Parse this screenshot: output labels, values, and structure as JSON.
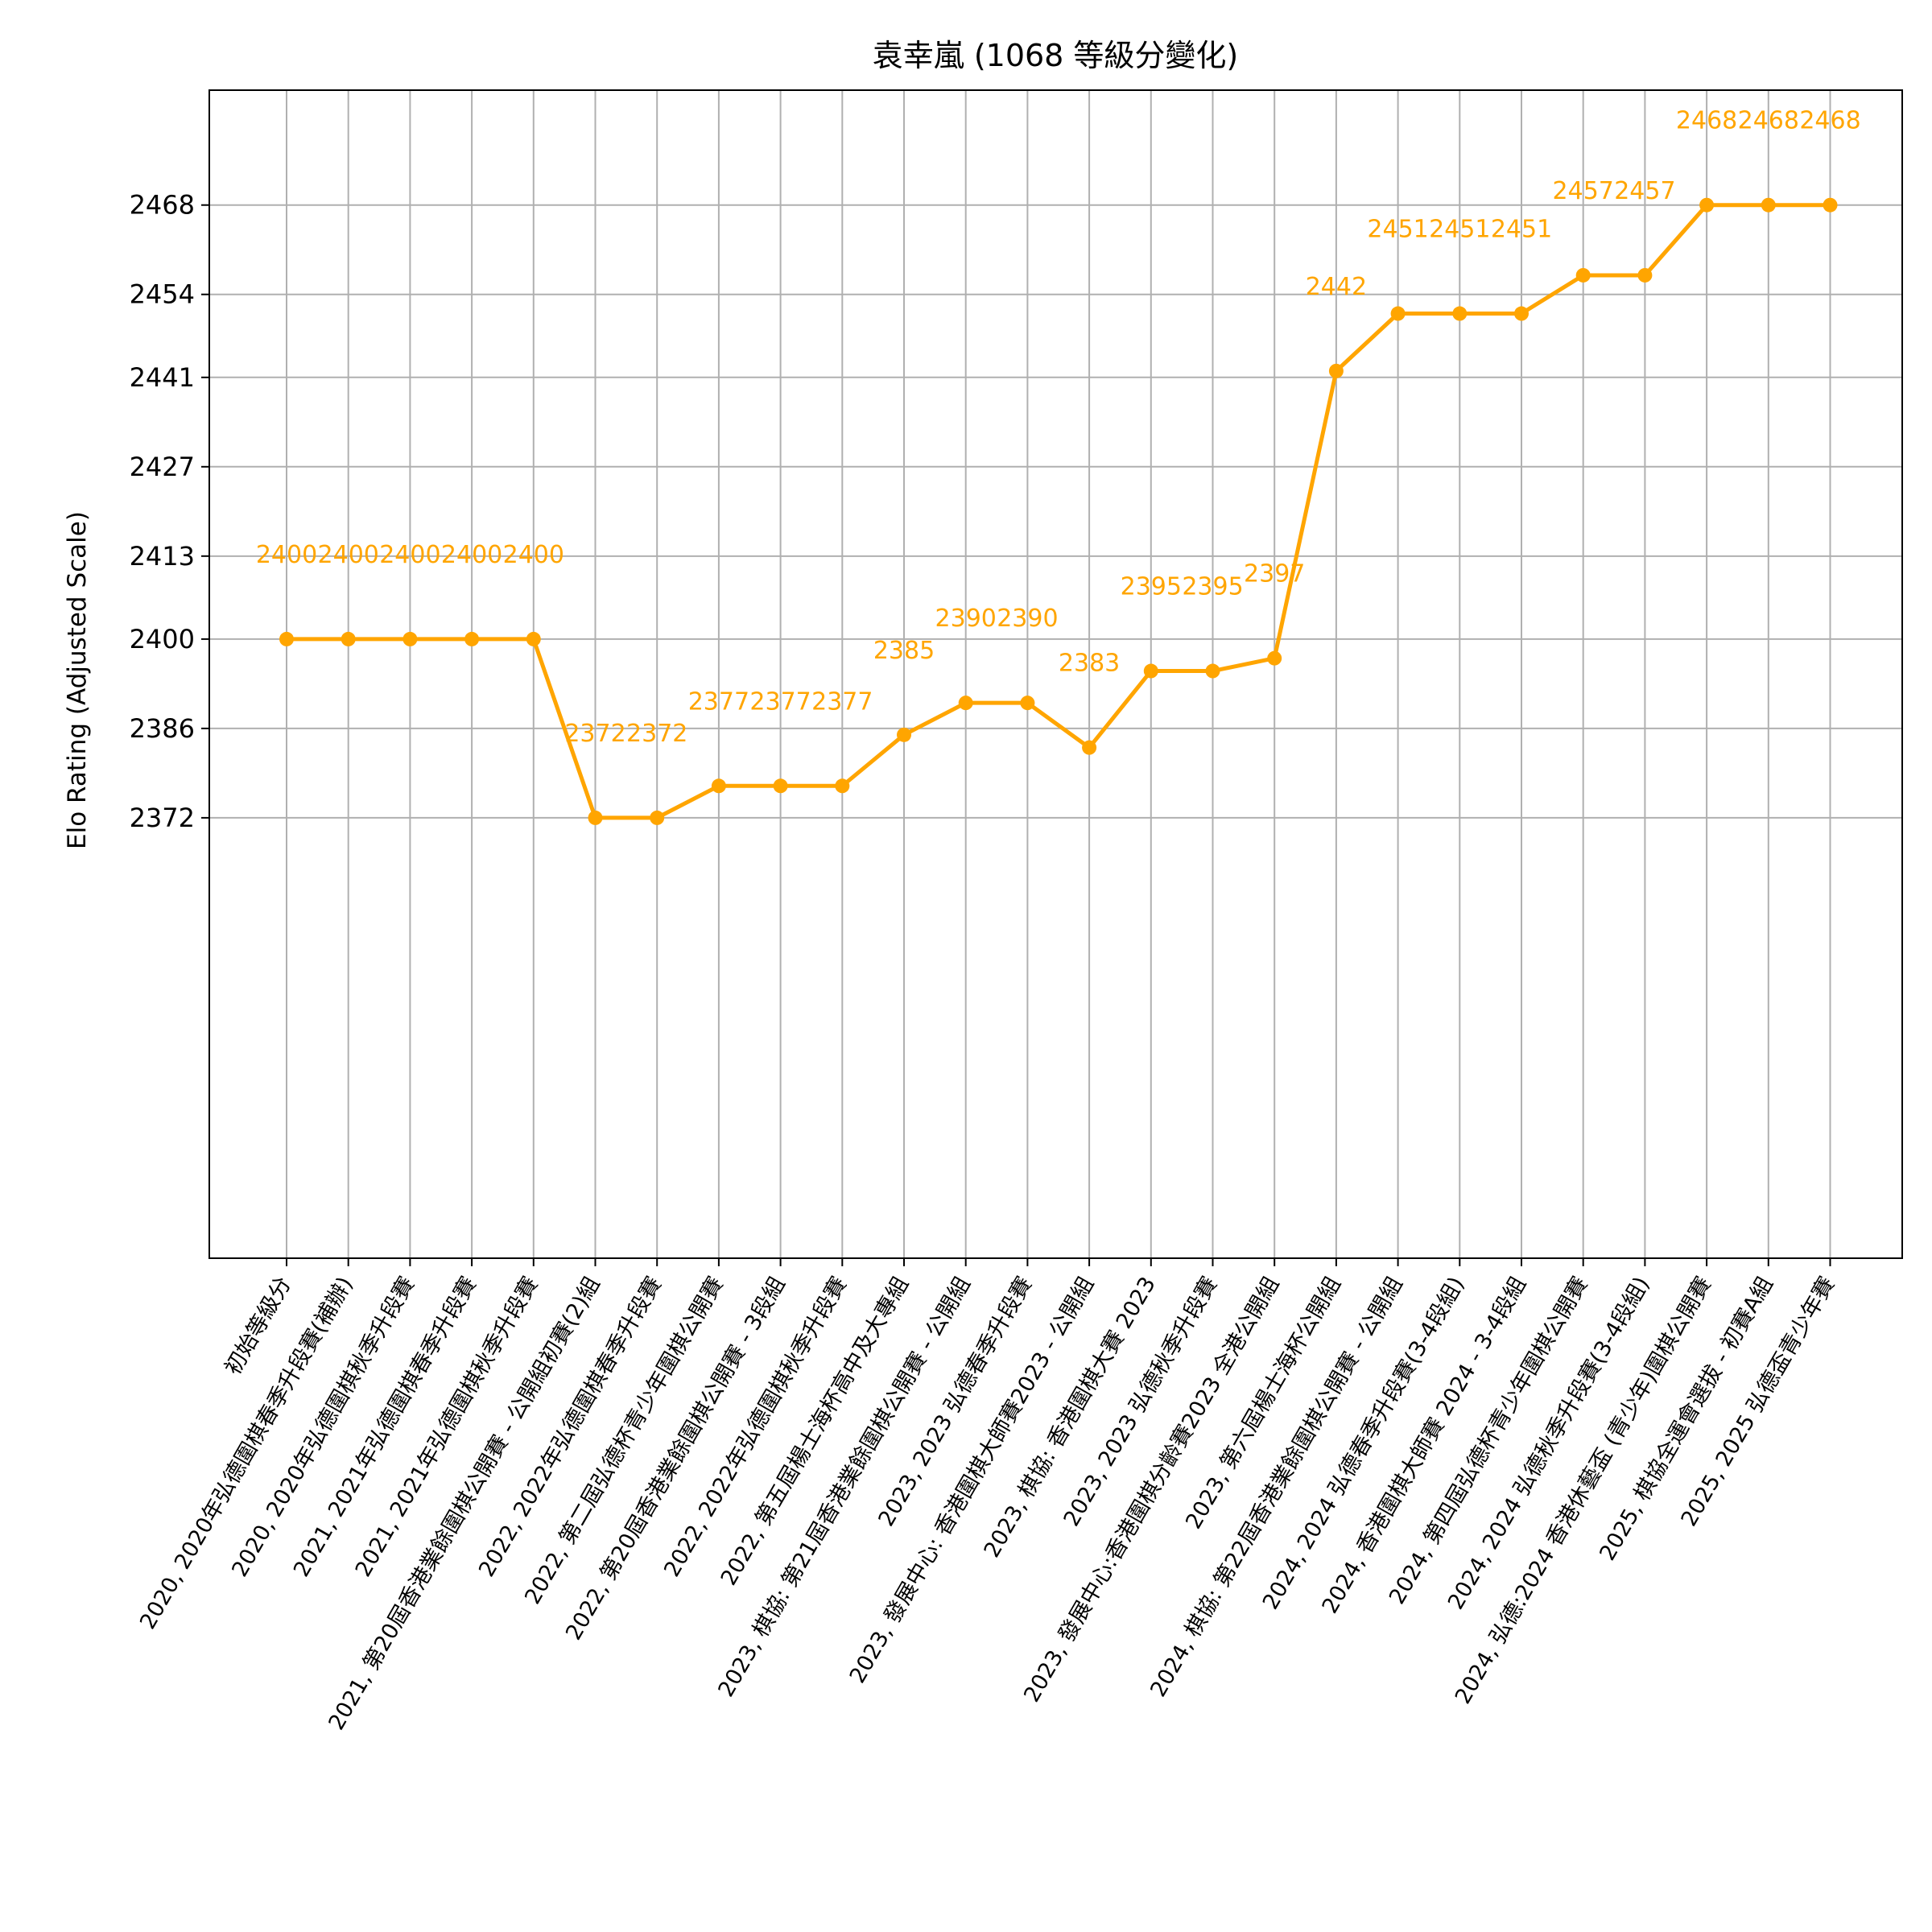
{
  "chart_data": {
    "type": "line",
    "title": "袁幸嵐 (1068 等級分變化)",
    "xlabel": "",
    "ylabel": "Elo Rating (Adjusted Scale)",
    "ylim": [
      2303,
      2486
    ],
    "yticks": [
      2372,
      2386,
      2400,
      2413,
      2427,
      2441,
      2454,
      2468
    ],
    "grid": true,
    "color": "#FFA500",
    "categories": [
      "初始等級分",
      "2020, 2020年弘德圍棋春季升段賽(補辦)",
      "2020, 2020年弘德圍棋秋季升段賽",
      "2021, 2021年弘德圍棋春季升段賽",
      "2021, 2021年弘德圍棋秋季升段賽",
      "2021, 第20屆香港業餘圍棋公開賽 - 公開組初賽(2)組",
      "2022, 2022年弘德圍棋春季升段賽",
      "2022, 第二屆弘德杯青少年圍棋公開賽",
      "2022, 第20屆香港業餘圍棋公開賽 - 3段組",
      "2022, 2022年弘德圍棋秋季升段賽",
      "2022, 第五屆楊士海杯高中及大專組",
      "2023, 棋協: 第21屆香港業餘圍棋公開賽 - 公開組",
      "2023, 2023 弘德春季升段賽",
      "2023, 發展中心: 香港圍棋大師賽2023 - 公開組",
      "2023, 棋協: 香港圍棋大賽 2023",
      "2023, 2023 弘德秋季升段賽",
      "2023, 發展中心:香港圍棋分齡賽2023 全港公開組",
      "2023, 第六屆楊士海杯公開組",
      "2024, 棋協: 第22屆香港業餘圍棋公開賽 - 公開組",
      "2024, 2024 弘德春季升段賽(3-4段組)",
      "2024, 香港圍棋大師賽 2024 - 3-4段組",
      "2024, 第四屆弘德杯青少年圍棋公開賽",
      "2024, 2024 弘德秋季升段賽(3-4段組)",
      "2024, 弘德:2024 香港休藝盃 (青少年)圍棋公開賽",
      "2025, 棋協全運會選拔 - 初賽A組",
      "2025, 2025 弘德盃青少年賽"
    ],
    "values": [
      2400,
      2400,
      2400,
      2400,
      2400,
      2372,
      2372,
      2377,
      2377,
      2377,
      2385,
      2390,
      2390,
      2383,
      2395,
      2395,
      2397,
      2442,
      2451,
      2451,
      2451,
      2457,
      2457,
      2468,
      2468,
      2468
    ]
  }
}
